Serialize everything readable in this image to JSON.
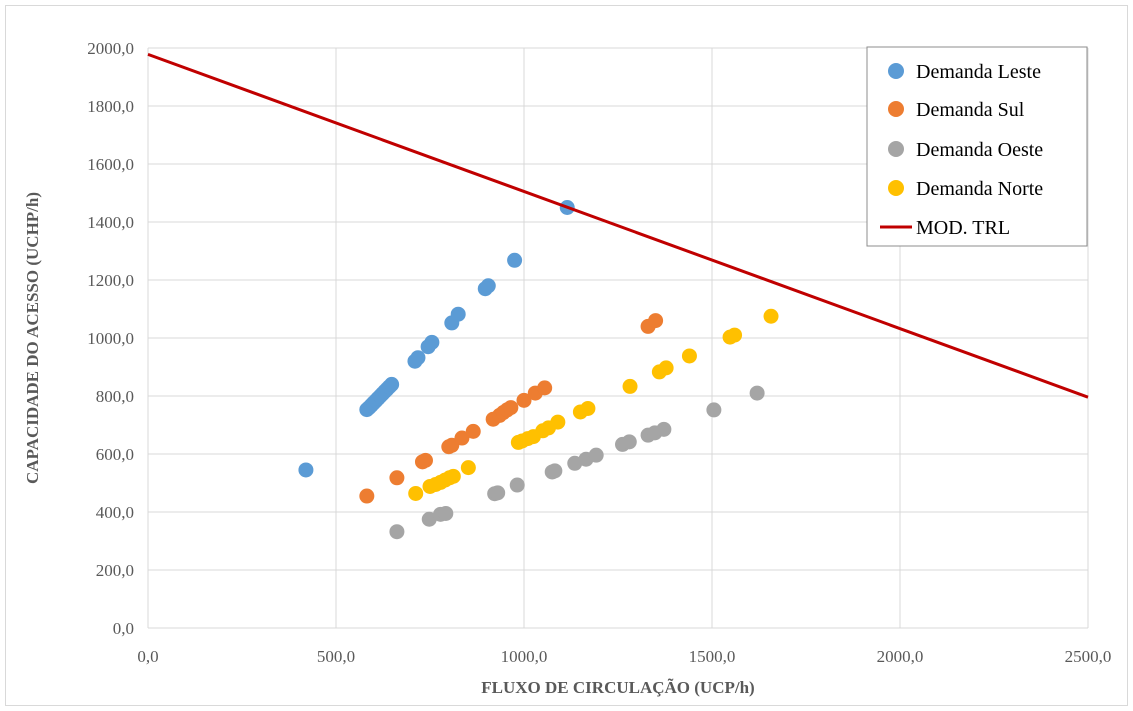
{
  "chart_data": {
    "type": "scatter",
    "title": "",
    "xlabel": "FLUXO DE CIRCULAÇÃO (UCP/h)",
    "ylabel": "CAPACIDADE DO ACESSO (UCHP/h)",
    "xlim": [
      0,
      2500
    ],
    "ylim": [
      0,
      2000
    ],
    "x_ticks": [
      0,
      500,
      1000,
      1500,
      2000,
      2500
    ],
    "y_ticks": [
      0,
      200,
      400,
      600,
      800,
      1000,
      1200,
      1400,
      1600,
      1800,
      2000
    ],
    "x_tick_labels": [
      "0,0",
      "500,0",
      "1000,0",
      "1500,0",
      "2000,0",
      "2500,0"
    ],
    "y_tick_labels": [
      "0,0",
      "200,0",
      "400,0",
      "600,0",
      "800,0",
      "1000,0",
      "1200,0",
      "1400,0",
      "1600,0",
      "1800,0",
      "2000,0"
    ],
    "grid": true,
    "legend_position": "top-right",
    "series": [
      {
        "name": "Demanda Leste",
        "kind": "scatter",
        "color": "#5b9bd5",
        "points": [
          [
            420,
            545
          ],
          [
            582,
            753
          ],
          [
            588,
            760
          ],
          [
            594,
            768
          ],
          [
            600,
            776
          ],
          [
            606,
            784
          ],
          [
            612,
            792
          ],
          [
            618,
            800
          ],
          [
            624,
            808
          ],
          [
            630,
            816
          ],
          [
            636,
            824
          ],
          [
            642,
            832
          ],
          [
            648,
            840
          ],
          [
            710,
            920
          ],
          [
            718,
            932
          ],
          [
            745,
            970
          ],
          [
            755,
            985
          ],
          [
            808,
            1052
          ],
          [
            825,
            1082
          ],
          [
            897,
            1170
          ],
          [
            905,
            1180
          ],
          [
            975,
            1268
          ],
          [
            1115,
            1450
          ]
        ]
      },
      {
        "name": "Demanda Sul",
        "kind": "scatter",
        "color": "#ed7d31",
        "points": [
          [
            582,
            455
          ],
          [
            662,
            518
          ],
          [
            730,
            573
          ],
          [
            738,
            578
          ],
          [
            800,
            625
          ],
          [
            808,
            630
          ],
          [
            835,
            655
          ],
          [
            865,
            678
          ],
          [
            918,
            720
          ],
          [
            935,
            733
          ],
          [
            945,
            743
          ],
          [
            955,
            752
          ],
          [
            965,
            760
          ],
          [
            1000,
            785
          ],
          [
            1030,
            810
          ],
          [
            1055,
            828
          ],
          [
            1330,
            1040
          ],
          [
            1350,
            1060
          ]
        ]
      },
      {
        "name": "Demanda Oeste",
        "kind": "scatter",
        "color": "#a5a5a5",
        "points": [
          [
            662,
            332
          ],
          [
            748,
            375
          ],
          [
            778,
            392
          ],
          [
            792,
            395
          ],
          [
            922,
            463
          ],
          [
            930,
            466
          ],
          [
            982,
            493
          ],
          [
            1075,
            538
          ],
          [
            1082,
            542
          ],
          [
            1135,
            568
          ],
          [
            1165,
            582
          ],
          [
            1192,
            596
          ],
          [
            1262,
            633
          ],
          [
            1280,
            642
          ],
          [
            1330,
            665
          ],
          [
            1348,
            673
          ],
          [
            1372,
            685
          ],
          [
            1505,
            752
          ],
          [
            1620,
            810
          ]
        ]
      },
      {
        "name": "Demanda Norte",
        "kind": "scatter",
        "color": "#ffc000",
        "points": [
          [
            712,
            464
          ],
          [
            750,
            488
          ],
          [
            765,
            495
          ],
          [
            778,
            502
          ],
          [
            790,
            510
          ],
          [
            802,
            518
          ],
          [
            812,
            523
          ],
          [
            852,
            553
          ],
          [
            985,
            640
          ],
          [
            995,
            645
          ],
          [
            1010,
            653
          ],
          [
            1025,
            660
          ],
          [
            1050,
            680
          ],
          [
            1065,
            690
          ],
          [
            1090,
            710
          ],
          [
            1150,
            745
          ],
          [
            1170,
            757
          ],
          [
            1282,
            833
          ],
          [
            1360,
            883
          ],
          [
            1378,
            897
          ],
          [
            1440,
            938
          ],
          [
            1548,
            1003
          ],
          [
            1560,
            1010
          ],
          [
            1657,
            1075
          ]
        ]
      },
      {
        "name": "MOD. TRL",
        "kind": "line",
        "color": "#c00000",
        "points": [
          [
            0,
            1978
          ],
          [
            2500,
            796
          ]
        ]
      }
    ]
  }
}
